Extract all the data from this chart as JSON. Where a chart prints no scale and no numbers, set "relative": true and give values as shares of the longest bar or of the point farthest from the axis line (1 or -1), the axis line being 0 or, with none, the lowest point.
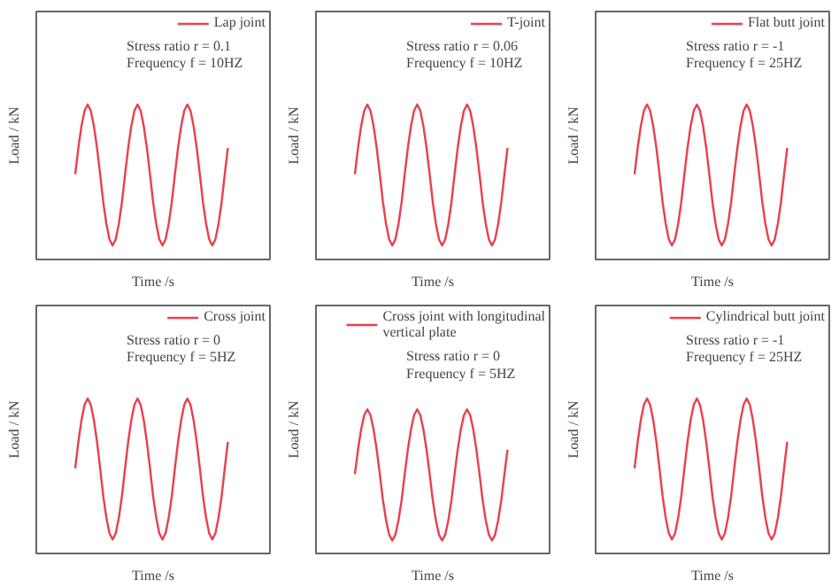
{
  "chart_data": [
    {
      "type": "line",
      "relative": true,
      "xlabel": "Time /s",
      "ylabel": "Load / kN",
      "categories": [
        null,
        null,
        null,
        null,
        null,
        null,
        null,
        null,
        null,
        null,
        null,
        null,
        null,
        null,
        null,
        null,
        null,
        null,
        null,
        null,
        null,
        null,
        null,
        null,
        null,
        null,
        null,
        null,
        null,
        null,
        null,
        null,
        null,
        null,
        null,
        null,
        null,
        null,
        null,
        null,
        null,
        null,
        null,
        null,
        null,
        null,
        null,
        null,
        null,
        null
      ],
      "series": [
        {
          "name": "Lap joint",
          "color": "#e8404f",
          "values": [
            0.55,
            0.72,
            0.86,
            0.96,
            1,
            0.96,
            0.86,
            0.72,
            0.55,
            0.37,
            0.23,
            0.13,
            0.09,
            0.13,
            0.23,
            0.37,
            0.55,
            0.72,
            0.86,
            0.96,
            1,
            0.96,
            0.86,
            0.72,
            0.55,
            0.37,
            0.23,
            0.13,
            0.09,
            0.13,
            0.23,
            0.37,
            0.55,
            0.72,
            0.86,
            0.96,
            1,
            0.96,
            0.86,
            0.72,
            0.55,
            0.37,
            0.23,
            0.13,
            0.09,
            0.13,
            0.23,
            0.37,
            0.55,
            0.72
          ]
        }
      ],
      "annotations": [
        "Stress ratio r = 0.1",
        "Frequency  f = 10HZ"
      ],
      "legend": "top right"
    },
    {
      "type": "line",
      "relative": true,
      "xlabel": "Time /s",
      "ylabel": "Load / kN",
      "categories": [
        null,
        null,
        null,
        null,
        null,
        null,
        null,
        null,
        null,
        null,
        null,
        null,
        null,
        null,
        null,
        null,
        null,
        null,
        null,
        null,
        null,
        null,
        null,
        null,
        null,
        null,
        null,
        null,
        null,
        null,
        null,
        null,
        null,
        null,
        null,
        null,
        null,
        null,
        null,
        null,
        null,
        null,
        null,
        null,
        null,
        null,
        null,
        null,
        null,
        null
      ],
      "series": [
        {
          "name": "T-joint",
          "color": "#e8404f",
          "values": [
            0.55,
            0.72,
            0.86,
            0.96,
            1,
            0.96,
            0.86,
            0.72,
            0.55,
            0.37,
            0.23,
            0.13,
            0.09,
            0.13,
            0.23,
            0.37,
            0.55,
            0.72,
            0.86,
            0.96,
            1,
            0.96,
            0.86,
            0.72,
            0.55,
            0.37,
            0.23,
            0.13,
            0.09,
            0.13,
            0.23,
            0.37,
            0.55,
            0.72,
            0.86,
            0.96,
            1,
            0.96,
            0.86,
            0.72,
            0.55,
            0.37,
            0.23,
            0.13,
            0.09,
            0.13,
            0.23,
            0.37,
            0.55,
            0.72
          ]
        }
      ],
      "annotations": [
        "Stress ratio r = 0.06",
        "Frequency  f = 10HZ"
      ],
      "legend": "top right"
    },
    {
      "type": "line",
      "relative": true,
      "xlabel": "Time /s",
      "ylabel": "Load / kN",
      "categories": [
        null,
        null,
        null,
        null,
        null,
        null,
        null,
        null,
        null,
        null,
        null,
        null,
        null,
        null,
        null,
        null,
        null,
        null,
        null,
        null,
        null,
        null,
        null,
        null,
        null,
        null,
        null,
        null,
        null,
        null,
        null,
        null,
        null,
        null,
        null,
        null,
        null,
        null,
        null,
        null,
        null,
        null,
        null,
        null,
        null,
        null,
        null,
        null,
        null,
        null
      ],
      "series": [
        {
          "name": "Flat butt joint",
          "color": "#e8404f",
          "values": [
            0.55,
            0.72,
            0.86,
            0.96,
            1,
            0.96,
            0.86,
            0.72,
            0.55,
            0.37,
            0.23,
            0.13,
            0.09,
            0.13,
            0.23,
            0.37,
            0.55,
            0.72,
            0.86,
            0.96,
            1,
            0.96,
            0.86,
            0.72,
            0.55,
            0.37,
            0.23,
            0.13,
            0.09,
            0.13,
            0.23,
            0.37,
            0.55,
            0.72,
            0.86,
            0.96,
            1,
            0.96,
            0.86,
            0.72,
            0.55,
            0.37,
            0.23,
            0.13,
            0.09,
            0.13,
            0.23,
            0.37,
            0.55,
            0.72
          ]
        }
      ],
      "annotations": [
        "Stress ratio r = -1",
        "Frequency  f = 25HZ"
      ],
      "legend": "top right"
    },
    {
      "type": "line",
      "relative": true,
      "xlabel": "Time /s",
      "ylabel": "Load / kN",
      "categories": [
        null,
        null,
        null,
        null,
        null,
        null,
        null,
        null,
        null,
        null,
        null,
        null,
        null,
        null,
        null,
        null,
        null,
        null,
        null,
        null,
        null,
        null,
        null,
        null,
        null,
        null,
        null,
        null,
        null,
        null,
        null,
        null,
        null,
        null,
        null,
        null,
        null,
        null,
        null,
        null,
        null,
        null,
        null,
        null,
        null,
        null,
        null,
        null,
        null,
        null
      ],
      "series": [
        {
          "name": "Cross joint",
          "color": "#e8404f",
          "values": [
            0.55,
            0.72,
            0.86,
            0.96,
            1,
            0.96,
            0.86,
            0.72,
            0.55,
            0.37,
            0.23,
            0.13,
            0.09,
            0.13,
            0.23,
            0.37,
            0.55,
            0.72,
            0.86,
            0.96,
            1,
            0.96,
            0.86,
            0.72,
            0.55,
            0.37,
            0.23,
            0.13,
            0.09,
            0.13,
            0.23,
            0.37,
            0.55,
            0.72,
            0.86,
            0.96,
            1,
            0.96,
            0.86,
            0.72,
            0.55,
            0.37,
            0.23,
            0.13,
            0.09,
            0.13,
            0.23,
            0.37,
            0.55,
            0.72
          ]
        }
      ],
      "annotations": [
        "Stress ratio r = 0",
        "Frequency  f = 5HZ"
      ],
      "legend": "top right"
    },
    {
      "type": "line",
      "relative": true,
      "xlabel": "Time /s",
      "ylabel": "Load / kN",
      "categories": [
        null,
        null,
        null,
        null,
        null,
        null,
        null,
        null,
        null,
        null,
        null,
        null,
        null,
        null,
        null,
        null,
        null,
        null,
        null,
        null,
        null,
        null,
        null,
        null,
        null,
        null,
        null,
        null,
        null,
        null,
        null,
        null,
        null,
        null,
        null,
        null,
        null,
        null,
        null,
        null,
        null,
        null,
        null,
        null,
        null,
        null,
        null,
        null,
        null,
        null
      ],
      "series": [
        {
          "name": "Cross joint with longitudinal vertical plate",
          "color": "#e8404f",
          "values": [
            0.55,
            0.72,
            0.86,
            0.96,
            1,
            0.96,
            0.86,
            0.72,
            0.55,
            0.37,
            0.23,
            0.13,
            0.09,
            0.13,
            0.23,
            0.37,
            0.55,
            0.72,
            0.86,
            0.96,
            1,
            0.96,
            0.86,
            0.72,
            0.55,
            0.37,
            0.23,
            0.13,
            0.09,
            0.13,
            0.23,
            0.37,
            0.55,
            0.72,
            0.86,
            0.96,
            1,
            0.96,
            0.86,
            0.72,
            0.55,
            0.37,
            0.23,
            0.13,
            0.09,
            0.13,
            0.23,
            0.37,
            0.55,
            0.72
          ]
        }
      ],
      "annotations": [
        "Stress ratio r = 0",
        "Frequency  f = 5HZ"
      ],
      "legend": "top right"
    },
    {
      "type": "line",
      "relative": true,
      "xlabel": "Time /s",
      "ylabel": "Load / kN",
      "categories": [
        null,
        null,
        null,
        null,
        null,
        null,
        null,
        null,
        null,
        null,
        null,
        null,
        null,
        null,
        null,
        null,
        null,
        null,
        null,
        null,
        null,
        null,
        null,
        null,
        null,
        null,
        null,
        null,
        null,
        null,
        null,
        null,
        null,
        null,
        null,
        null,
        null,
        null,
        null,
        null,
        null,
        null,
        null,
        null,
        null,
        null,
        null,
        null,
        null,
        null
      ],
      "series": [
        {
          "name": "Cylindrical butt joint",
          "color": "#e8404f",
          "values": [
            0.55,
            0.72,
            0.86,
            0.96,
            1,
            0.96,
            0.86,
            0.72,
            0.55,
            0.37,
            0.23,
            0.13,
            0.09,
            0.13,
            0.23,
            0.37,
            0.55,
            0.72,
            0.86,
            0.96,
            1,
            0.96,
            0.86,
            0.72,
            0.55,
            0.37,
            0.23,
            0.13,
            0.09,
            0.13,
            0.23,
            0.37,
            0.55,
            0.72,
            0.86,
            0.96,
            1,
            0.96,
            0.86,
            0.72,
            0.55,
            0.37,
            0.23,
            0.13,
            0.09,
            0.13,
            0.23,
            0.37,
            0.55,
            0.72
          ]
        }
      ],
      "annotations": [
        "Stress ratio r = -1",
        "Frequency  f = 25HZ"
      ],
      "legend": "top right"
    }
  ]
}
